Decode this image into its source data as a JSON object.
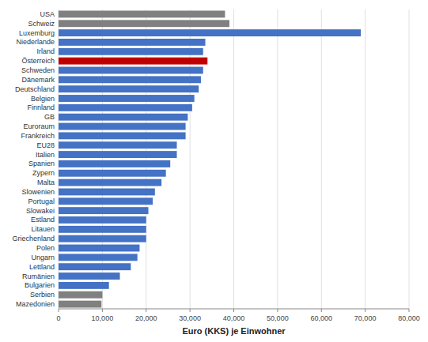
{
  "chart_data": {
    "type": "bar",
    "orientation": "horizontal",
    "categories": [
      "USA",
      "Schweiz",
      "Luxemburg",
      "Niederlande",
      "Irland",
      "Österreich",
      "Schweden",
      "Dänemark",
      "Deutschland",
      "Belgien",
      "Finnland",
      "GB",
      "Euroraum",
      "Frankreich",
      "EU28",
      "Italien",
      "Spanien",
      "Zypern",
      "Malta",
      "Slowenien",
      "Portugal",
      "Slowakei",
      "Estland",
      "Litauen",
      "Griechenland",
      "Polen",
      "Ungarn",
      "Lettland",
      "Rumänien",
      "Bulgarien",
      "Serbien",
      "Mazedonien"
    ],
    "values": [
      38000,
      39000,
      69000,
      33500,
      33000,
      34000,
      33000,
      32500,
      32000,
      31000,
      30500,
      29500,
      29000,
      29000,
      27000,
      27000,
      25500,
      24500,
      23500,
      22000,
      21500,
      20500,
      20000,
      20000,
      20000,
      18500,
      18000,
      16500,
      14000,
      11500,
      10000,
      9800
    ],
    "colors": [
      "#808080",
      "#808080",
      "#4472C4",
      "#4472C4",
      "#4472C4",
      "#C00000",
      "#4472C4",
      "#4472C4",
      "#4472C4",
      "#4472C4",
      "#4472C4",
      "#4472C4",
      "#4472C4",
      "#4472C4",
      "#4472C4",
      "#4472C4",
      "#4472C4",
      "#4472C4",
      "#4472C4",
      "#4472C4",
      "#4472C4",
      "#4472C4",
      "#4472C4",
      "#4472C4",
      "#4472C4",
      "#4472C4",
      "#4472C4",
      "#4472C4",
      "#4472C4",
      "#4472C4",
      "#808080",
      "#808080"
    ],
    "xlabel": "Euro (KKS) je Einwohner",
    "xlim": [
      0,
      80000
    ],
    "xticks": [
      0,
      {
        "value": 10000,
        "label": "10,000"
      },
      {
        "value": 20000,
        "label": "20,000"
      },
      {
        "value": 30000,
        "label": "30,000"
      },
      {
        "value": 40000,
        "label": "40,000"
      },
      {
        "value": 50000,
        "label": "50,000"
      },
      {
        "value": 60000,
        "label": "60,000"
      },
      {
        "value": 70000,
        "label": "70,000"
      },
      {
        "value": 80000,
        "label": "80,000"
      }
    ],
    "grid": true
  }
}
